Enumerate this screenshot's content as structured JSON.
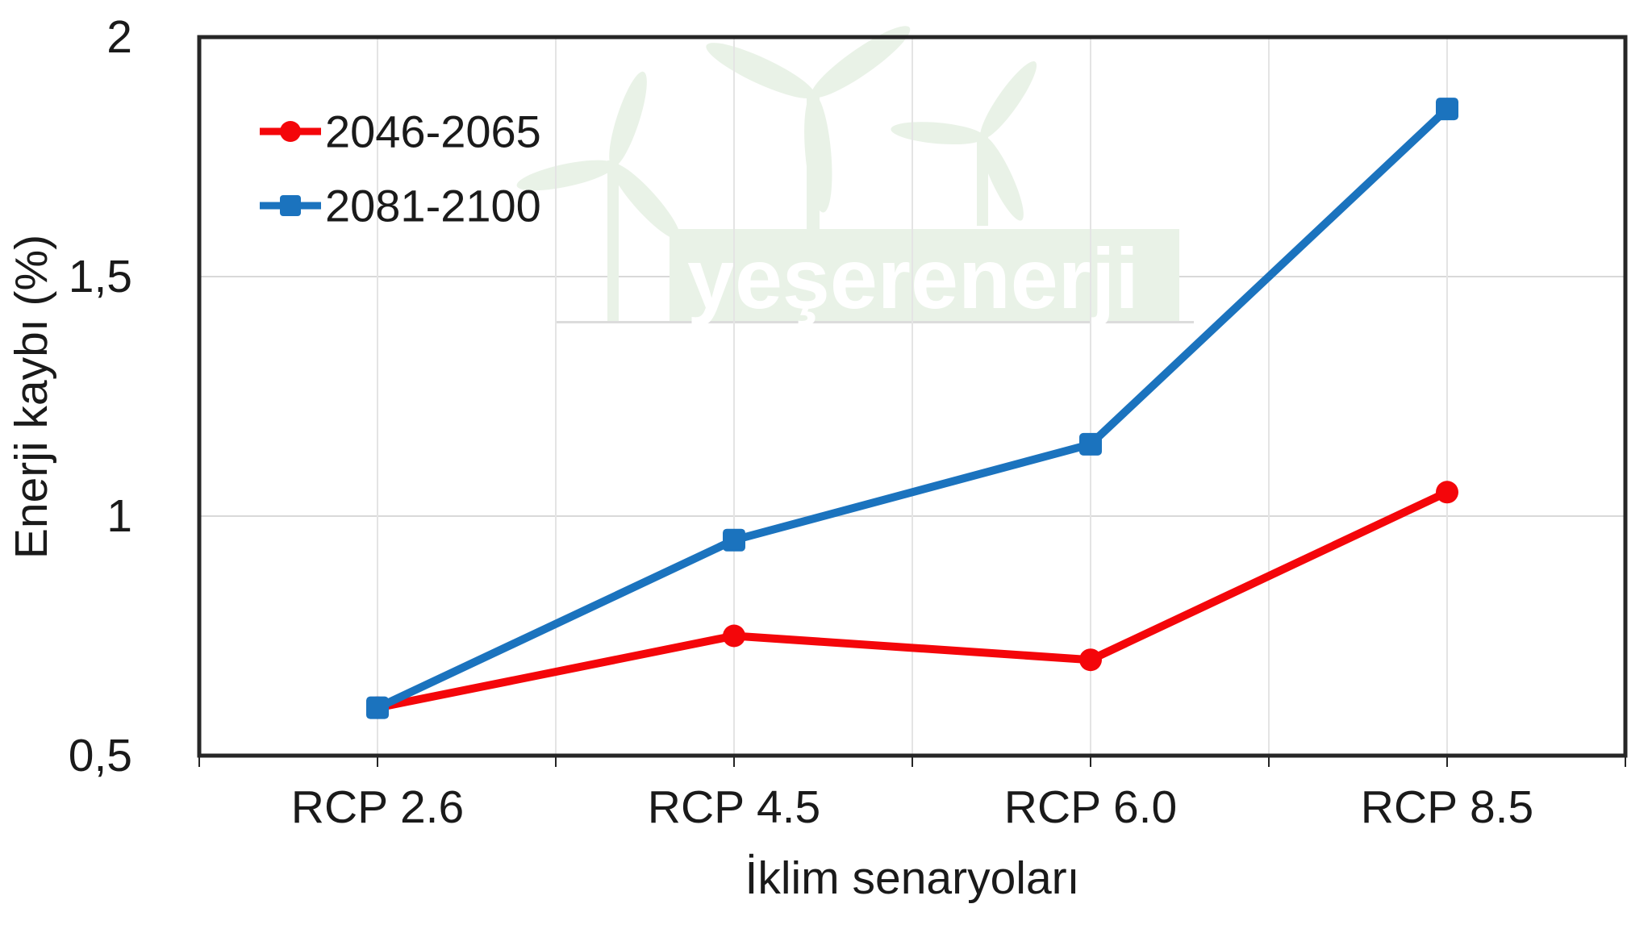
{
  "chart_data": {
    "type": "line",
    "categories": [
      "RCP 2.6",
      "RCP 4.5",
      "RCP 6.0",
      "RCP 8.5"
    ],
    "series": [
      {
        "name": "2046-2065",
        "color": "#f4060a",
        "marker": "circle",
        "values": [
          0.6,
          0.75,
          0.7,
          1.05
        ]
      },
      {
        "name": "2081-2100",
        "color": "#1b73be",
        "marker": "square",
        "values": [
          0.6,
          0.95,
          1.15,
          1.85
        ]
      }
    ],
    "xlabel": "İklim senaryoları",
    "ylabel": "Enerji kaybı (%)",
    "ylim": [
      0.5,
      2
    ],
    "ytick_values": [
      0.5,
      1,
      1.5,
      2
    ],
    "ytick_labels": [
      "0,5",
      "1",
      "1,5",
      "2"
    ],
    "grid": {
      "horizontal": true,
      "vertical": true
    },
    "legend_position": "top-left-inside"
  },
  "watermark": {
    "text": "yeşerenerji",
    "band_color": "#e9f2e7",
    "text_color": "#ffffff"
  },
  "style": {
    "axis_color": "#262626",
    "text_color": "#1a1a1a",
    "hgrid_color": "#d9d9d9",
    "vgrid_color": "#e4e4e4"
  }
}
